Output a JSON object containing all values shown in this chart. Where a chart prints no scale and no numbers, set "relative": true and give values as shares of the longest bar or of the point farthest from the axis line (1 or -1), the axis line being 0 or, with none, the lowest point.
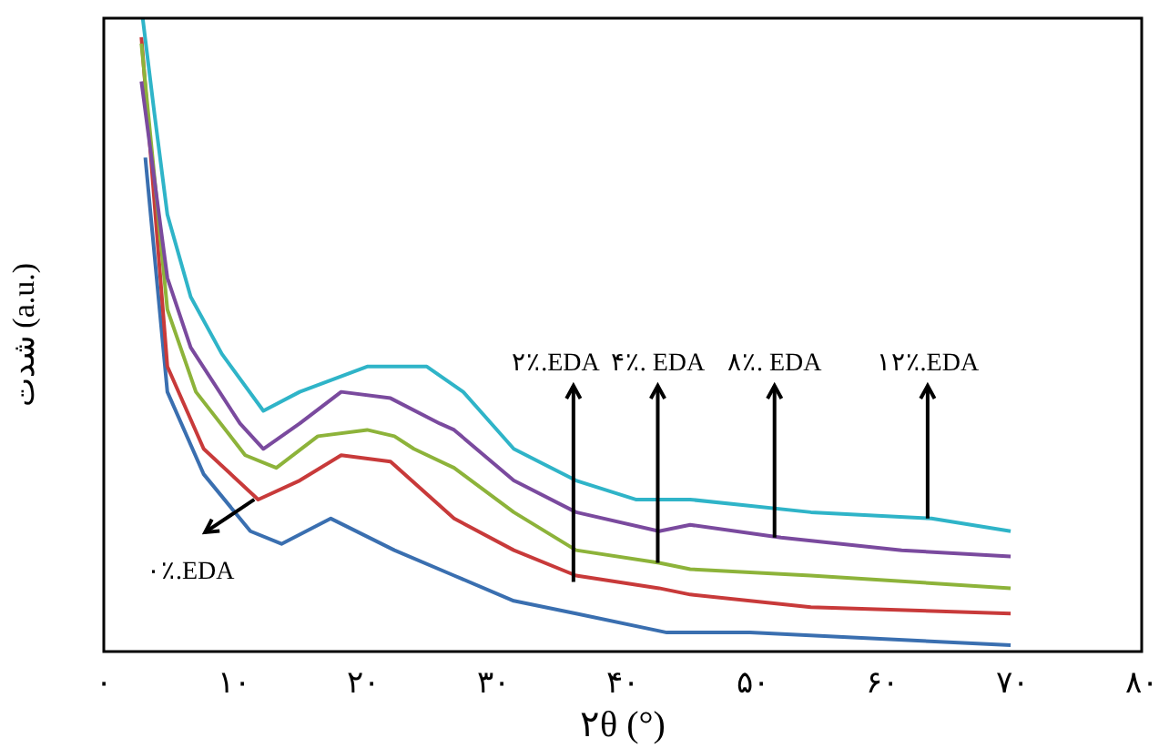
{
  "chart_data": {
    "type": "line",
    "relative": true,
    "xlabel": "۲θ (°)",
    "ylabel": "شدت (a.u.)",
    "xlim": [
      0,
      80
    ],
    "xticks": [
      {
        "value": 0,
        "label": "۰"
      },
      {
        "value": 10,
        "label": "۱۰"
      },
      {
        "value": 20,
        "label": "۲۰"
      },
      {
        "value": 30,
        "label": "۳۰"
      },
      {
        "value": 40,
        "label": "۴۰"
      },
      {
        "value": 50,
        "label": "۵۰"
      },
      {
        "value": 60,
        "label": "۶۰"
      },
      {
        "value": 70,
        "label": "۷۰"
      },
      {
        "value": 80,
        "label": "۸۰"
      }
    ],
    "grid": false,
    "legend": false,
    "marker": "none",
    "line_style": "solid",
    "series": [
      {
        "color": "#2fb4c8",
        "x": [
          3,
          3.9,
          4.9,
          6.7,
          9.1,
          12.3,
          15.1,
          20.3,
          24.9,
          27.7,
          31.6,
          36.4,
          41,
          45.2,
          54.5,
          63.8,
          69.9
        ],
        "values": [
          1.0,
          0.85,
          0.69,
          0.56,
          0.47,
          0.38,
          0.41,
          0.45,
          0.45,
          0.41,
          0.32,
          0.27,
          0.24,
          0.24,
          0.22,
          0.21,
          0.19
        ]
      },
      {
        "color": "#7a4a9e",
        "x": [
          2.9,
          4.9,
          6.7,
          10.5,
          12.3,
          15.1,
          18.3,
          22.1,
          25.9,
          27,
          31.6,
          36.4,
          42.8,
          45.2,
          52.2,
          61.5,
          69.9
        ],
        "values": [
          0.9,
          0.59,
          0.48,
          0.36,
          0.32,
          0.36,
          0.41,
          0.4,
          0.36,
          0.35,
          0.27,
          0.22,
          0.19,
          0.2,
          0.18,
          0.16,
          0.15
        ]
      },
      {
        "color": "#8db33a",
        "x": [
          2.9,
          4.9,
          7.1,
          10.9,
          13.3,
          16.5,
          20.3,
          22.4,
          23.9,
          27,
          31.6,
          36.4,
          42.8,
          45.2,
          54.5,
          69.9
        ],
        "values": [
          0.96,
          0.54,
          0.41,
          0.31,
          0.29,
          0.34,
          0.35,
          0.34,
          0.32,
          0.29,
          0.22,
          0.16,
          0.14,
          0.13,
          0.12,
          0.1
        ]
      },
      {
        "color": "#c83a3a",
        "x": [
          2.9,
          4.9,
          7.7,
          11.9,
          15.1,
          18.3,
          22.1,
          27,
          31.6,
          36.4,
          42.8,
          45.2,
          54.5,
          69.9
        ],
        "values": [
          0.97,
          0.45,
          0.32,
          0.24,
          0.27,
          0.31,
          0.3,
          0.21,
          0.16,
          0.12,
          0.1,
          0.09,
          0.07,
          0.06
        ]
      },
      {
        "color": "#3a6fb0",
        "x": [
          3.2,
          4.9,
          7.7,
          11.3,
          13.7,
          17.5,
          22.4,
          27,
          31.6,
          36.4,
          43.4,
          49.8,
          69.9
        ],
        "values": [
          0.78,
          0.41,
          0.28,
          0.19,
          0.17,
          0.21,
          0.16,
          0.12,
          0.08,
          0.06,
          0.03,
          0.03,
          0.01
        ]
      }
    ],
    "annotations": [
      {
        "text": "۰٪.EDA",
        "x": 11.6,
        "y": 0.24
      },
      {
        "text": "۲٪.EDA",
        "x": 36.2,
        "y": 0.11
      },
      {
        "text": "۴٪. EDA",
        "x": 42.7,
        "y": 0.14
      },
      {
        "text": "۸٪. EDA",
        "x": 51.7,
        "y": 0.18
      },
      {
        "text": "۱۲٪.EDA",
        "x": 63.5,
        "y": 0.21
      }
    ]
  }
}
